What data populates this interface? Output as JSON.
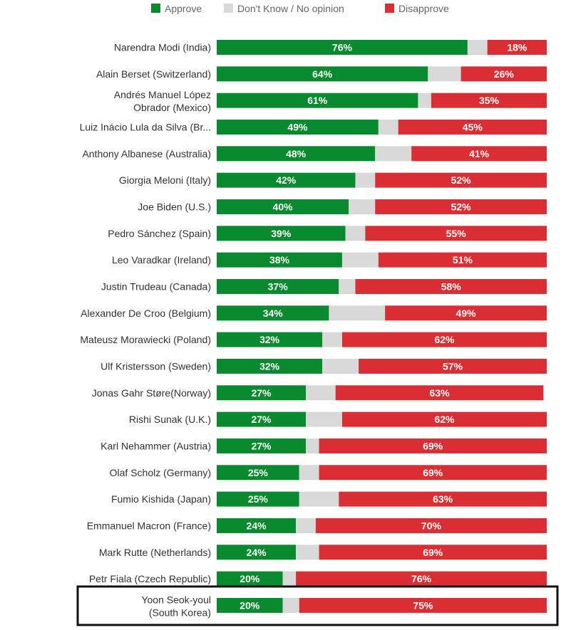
{
  "chart_data": {
    "type": "bar",
    "orientation": "horizontal",
    "stacked": true,
    "xlim": [
      0,
      100
    ],
    "legend_placement": "top",
    "highlighted_category": "Yoon Seok-youl (South Korea)",
    "categories": [
      "Narendra Modi (India)",
      "Alain Berset (Switzerland)",
      "Andrés Manuel López Obrador (Mexico)",
      "Luiz Inácio Lula da Silva (Br...",
      "Anthony Albanese (Australia)",
      "Giorgia Meloni (Italy)",
      "Joe Biden (U.S.)",
      "Pedro Sánchez (Spain)",
      "Leo Varadkar (Ireland)",
      "Justin Trudeau (Canada)",
      "Alexander De Croo (Belgium)",
      "Mateusz Morawiecki (Poland)",
      "Ulf Kristersson (Sweden)",
      "Jonas Gahr Støre(Norway)",
      "Rishi Sunak (U.K.)",
      "Karl Nehammer (Austria)",
      "Olaf Scholz (Germany)",
      "Fumio Kishida (Japan)",
      "Emmanuel Macron (France)",
      "Mark Rutte (Netherlands)",
      "Petr Fiala (Czech Republic)",
      "Yoon Seok-youl (South Korea)"
    ],
    "series": [
      {
        "name": "Approve",
        "color": "#0a8a2e",
        "values": [
          76,
          64,
          61,
          49,
          48,
          42,
          40,
          39,
          38,
          37,
          34,
          32,
          32,
          27,
          27,
          27,
          25,
          25,
          24,
          24,
          20,
          20
        ]
      },
      {
        "name": "Don't Know / No opinion",
        "color": "#d9d9d9",
        "values": [
          6,
          10,
          4,
          6,
          11,
          6,
          8,
          6,
          11,
          5,
          17,
          6,
          11,
          9,
          11,
          4,
          6,
          12,
          6,
          7,
          4,
          5
        ]
      },
      {
        "name": "Disapprove",
        "color": "#d92e34",
        "values": [
          18,
          26,
          35,
          45,
          41,
          52,
          52,
          55,
          51,
          58,
          49,
          62,
          57,
          63,
          62,
          69,
          69,
          63,
          70,
          69,
          76,
          75
        ]
      }
    ],
    "shown_labels": [
      "Approve",
      "Disapprove"
    ]
  }
}
